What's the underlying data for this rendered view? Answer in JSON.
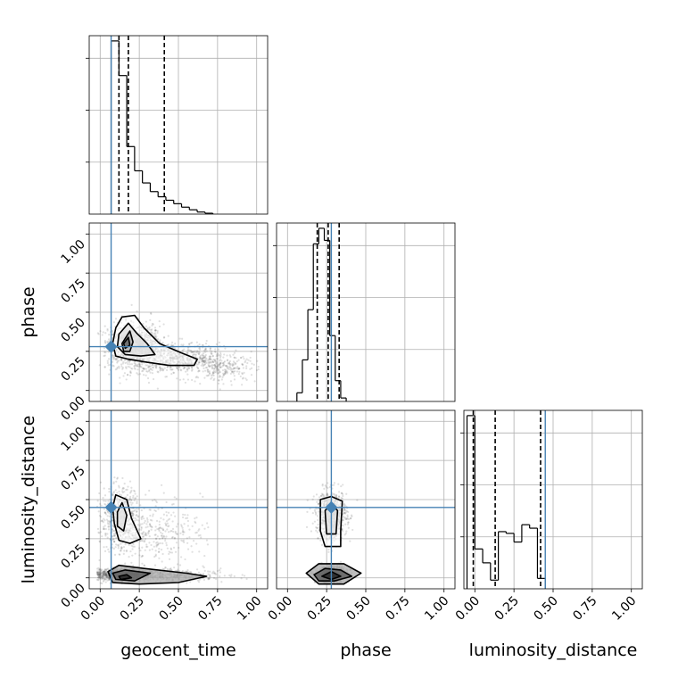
{
  "chart_data": {
    "type": "corner",
    "parameters": [
      "geocent_time",
      "phase",
      "luminosity_distance"
    ],
    "axis_range": [
      -0.07,
      1.07
    ],
    "ticks": [
      0.0,
      0.25,
      0.5,
      0.75,
      1.0
    ],
    "tick_labels": [
      "0.00",
      "0.25",
      "0.50",
      "0.75",
      "1.00"
    ],
    "grid": true,
    "colors": {
      "truth": "#4682b4",
      "line": "#000000",
      "points": "#555555",
      "grid": "#b0b0b0"
    },
    "truths": {
      "geocent_time": 0.07,
      "phase": 0.28,
      "luminosity_distance": 0.45
    },
    "quantiles": {
      "geocent_time": [
        0.12,
        0.18,
        0.41
      ],
      "phase": [
        0.19,
        0.26,
        0.33
      ],
      "luminosity_distance": [
        -0.01,
        0.13,
        0.42
      ]
    },
    "histograms": {
      "geocent_time": {
        "bin_start": 0.07,
        "bin_width": 0.05,
        "values": [
          1.0,
          0.8,
          0.39,
          0.25,
          0.18,
          0.13,
          0.1,
          0.08,
          0.06,
          0.04,
          0.025,
          0.012,
          0.005
        ]
      },
      "phase": {
        "bin_start": 0.06,
        "bin_width": 0.035,
        "values": [
          0.05,
          0.24,
          0.53,
          0.91,
          1.0,
          0.93,
          0.38,
          0.12,
          0.02
        ]
      },
      "luminosity_distance": {
        "bin_start": -0.05,
        "bin_width": 0.05,
        "values": [
          1.0,
          0.23,
          0.15,
          0.05,
          0.33,
          0.32,
          0.27,
          0.37,
          0.35,
          0.06
        ]
      }
    },
    "scatter_regions": {
      "geocent_time_vs_phase": [
        {
          "x": 0.22,
          "y": 0.28,
          "sx": 0.09,
          "sy": 0.07,
          "n": 900
        },
        {
          "x": 0.5,
          "y": 0.2,
          "sx": 0.16,
          "sy": 0.05,
          "n": 650
        },
        {
          "x": 0.8,
          "y": 0.14,
          "sx": 0.1,
          "sy": 0.04,
          "n": 200
        }
      ],
      "geocent_time_vs_luminosity_distance": [
        {
          "x": 0.13,
          "y": 0.02,
          "sx": 0.08,
          "sy": 0.02,
          "n": 900
        },
        {
          "x": 0.42,
          "y": 0.02,
          "sx": 0.18,
          "sy": 0.02,
          "n": 400
        },
        {
          "x": 0.13,
          "y": 0.38,
          "sx": 0.06,
          "sy": 0.1,
          "n": 500
        },
        {
          "x": 0.35,
          "y": 0.3,
          "sx": 0.15,
          "sy": 0.1,
          "n": 350
        }
      ],
      "phase_vs_luminosity_distance": [
        {
          "x": 0.28,
          "y": 0.02,
          "sx": 0.05,
          "sy": 0.025,
          "n": 1000
        },
        {
          "x": 0.28,
          "y": 0.4,
          "sx": 0.05,
          "sy": 0.08,
          "n": 700
        }
      ]
    },
    "contours": {
      "geocent_time_vs_phase": [
        [
          [
            0.1,
            0.4
          ],
          [
            0.14,
            0.47
          ],
          [
            0.22,
            0.48
          ],
          [
            0.28,
            0.4
          ],
          [
            0.38,
            0.3
          ],
          [
            0.52,
            0.24
          ],
          [
            0.62,
            0.2
          ],
          [
            0.6,
            0.16
          ],
          [
            0.44,
            0.16
          ],
          [
            0.3,
            0.18
          ],
          [
            0.18,
            0.2
          ],
          [
            0.1,
            0.22
          ],
          [
            0.08,
            0.3
          ]
        ],
        [
          [
            0.12,
            0.36
          ],
          [
            0.18,
            0.43
          ],
          [
            0.23,
            0.37
          ],
          [
            0.3,
            0.3
          ],
          [
            0.35,
            0.23
          ],
          [
            0.26,
            0.22
          ],
          [
            0.16,
            0.23
          ],
          [
            0.11,
            0.28
          ]
        ],
        [
          [
            0.14,
            0.3
          ],
          [
            0.19,
            0.38
          ],
          [
            0.21,
            0.31
          ],
          [
            0.19,
            0.25
          ],
          [
            0.15,
            0.25
          ]
        ],
        [
          [
            0.15,
            0.3
          ],
          [
            0.18,
            0.34
          ],
          [
            0.19,
            0.29
          ],
          [
            0.16,
            0.27
          ]
        ]
      ],
      "geocent_time_vs_luminosity_distance": [
        [
          [
            0.08,
            0.45
          ],
          [
            0.1,
            0.53
          ],
          [
            0.17,
            0.5
          ],
          [
            0.2,
            0.38
          ],
          [
            0.26,
            0.25
          ],
          [
            0.19,
            0.22
          ],
          [
            0.12,
            0.24
          ],
          [
            0.09,
            0.35
          ]
        ],
        [
          [
            0.11,
            0.42
          ],
          [
            0.14,
            0.48
          ],
          [
            0.17,
            0.4
          ],
          [
            0.15,
            0.3
          ],
          [
            0.11,
            0.33
          ]
        ],
        [
          [
            0.05,
            0.04
          ],
          [
            0.12,
            0.08
          ],
          [
            0.28,
            0.06
          ],
          [
            0.55,
            0.03
          ],
          [
            0.68,
            0.01
          ],
          [
            0.5,
            -0.03
          ],
          [
            0.25,
            -0.04
          ],
          [
            0.08,
            -0.03
          ]
        ],
        [
          [
            0.08,
            0.03
          ],
          [
            0.16,
            0.05
          ],
          [
            0.32,
            0.03
          ],
          [
            0.22,
            -0.02
          ],
          [
            0.1,
            -0.01
          ]
        ],
        [
          [
            0.12,
            0.01
          ],
          [
            0.17,
            0.02
          ],
          [
            0.2,
            0.0
          ],
          [
            0.13,
            -0.01
          ]
        ]
      ],
      "phase_vs_luminosity_distance": [
        [
          [
            0.21,
            0.5
          ],
          [
            0.28,
            0.52
          ],
          [
            0.35,
            0.49
          ],
          [
            0.34,
            0.3
          ],
          [
            0.34,
            0.2
          ],
          [
            0.24,
            0.2
          ],
          [
            0.21,
            0.3
          ]
        ],
        [
          [
            0.24,
            0.43
          ],
          [
            0.28,
            0.47
          ],
          [
            0.32,
            0.43
          ],
          [
            0.31,
            0.28
          ],
          [
            0.25,
            0.28
          ]
        ],
        [
          [
            0.12,
            0.03
          ],
          [
            0.2,
            0.09
          ],
          [
            0.36,
            0.09
          ],
          [
            0.47,
            0.03
          ],
          [
            0.36,
            -0.04
          ],
          [
            0.2,
            -0.04
          ]
        ],
        [
          [
            0.17,
            0.02
          ],
          [
            0.24,
            0.06
          ],
          [
            0.34,
            0.05
          ],
          [
            0.41,
            0.01
          ],
          [
            0.3,
            -0.02
          ],
          [
            0.2,
            -0.02
          ]
        ],
        [
          [
            0.22,
            0.01
          ],
          [
            0.28,
            0.04
          ],
          [
            0.34,
            0.01
          ],
          [
            0.28,
            -0.01
          ]
        ]
      ]
    }
  }
}
